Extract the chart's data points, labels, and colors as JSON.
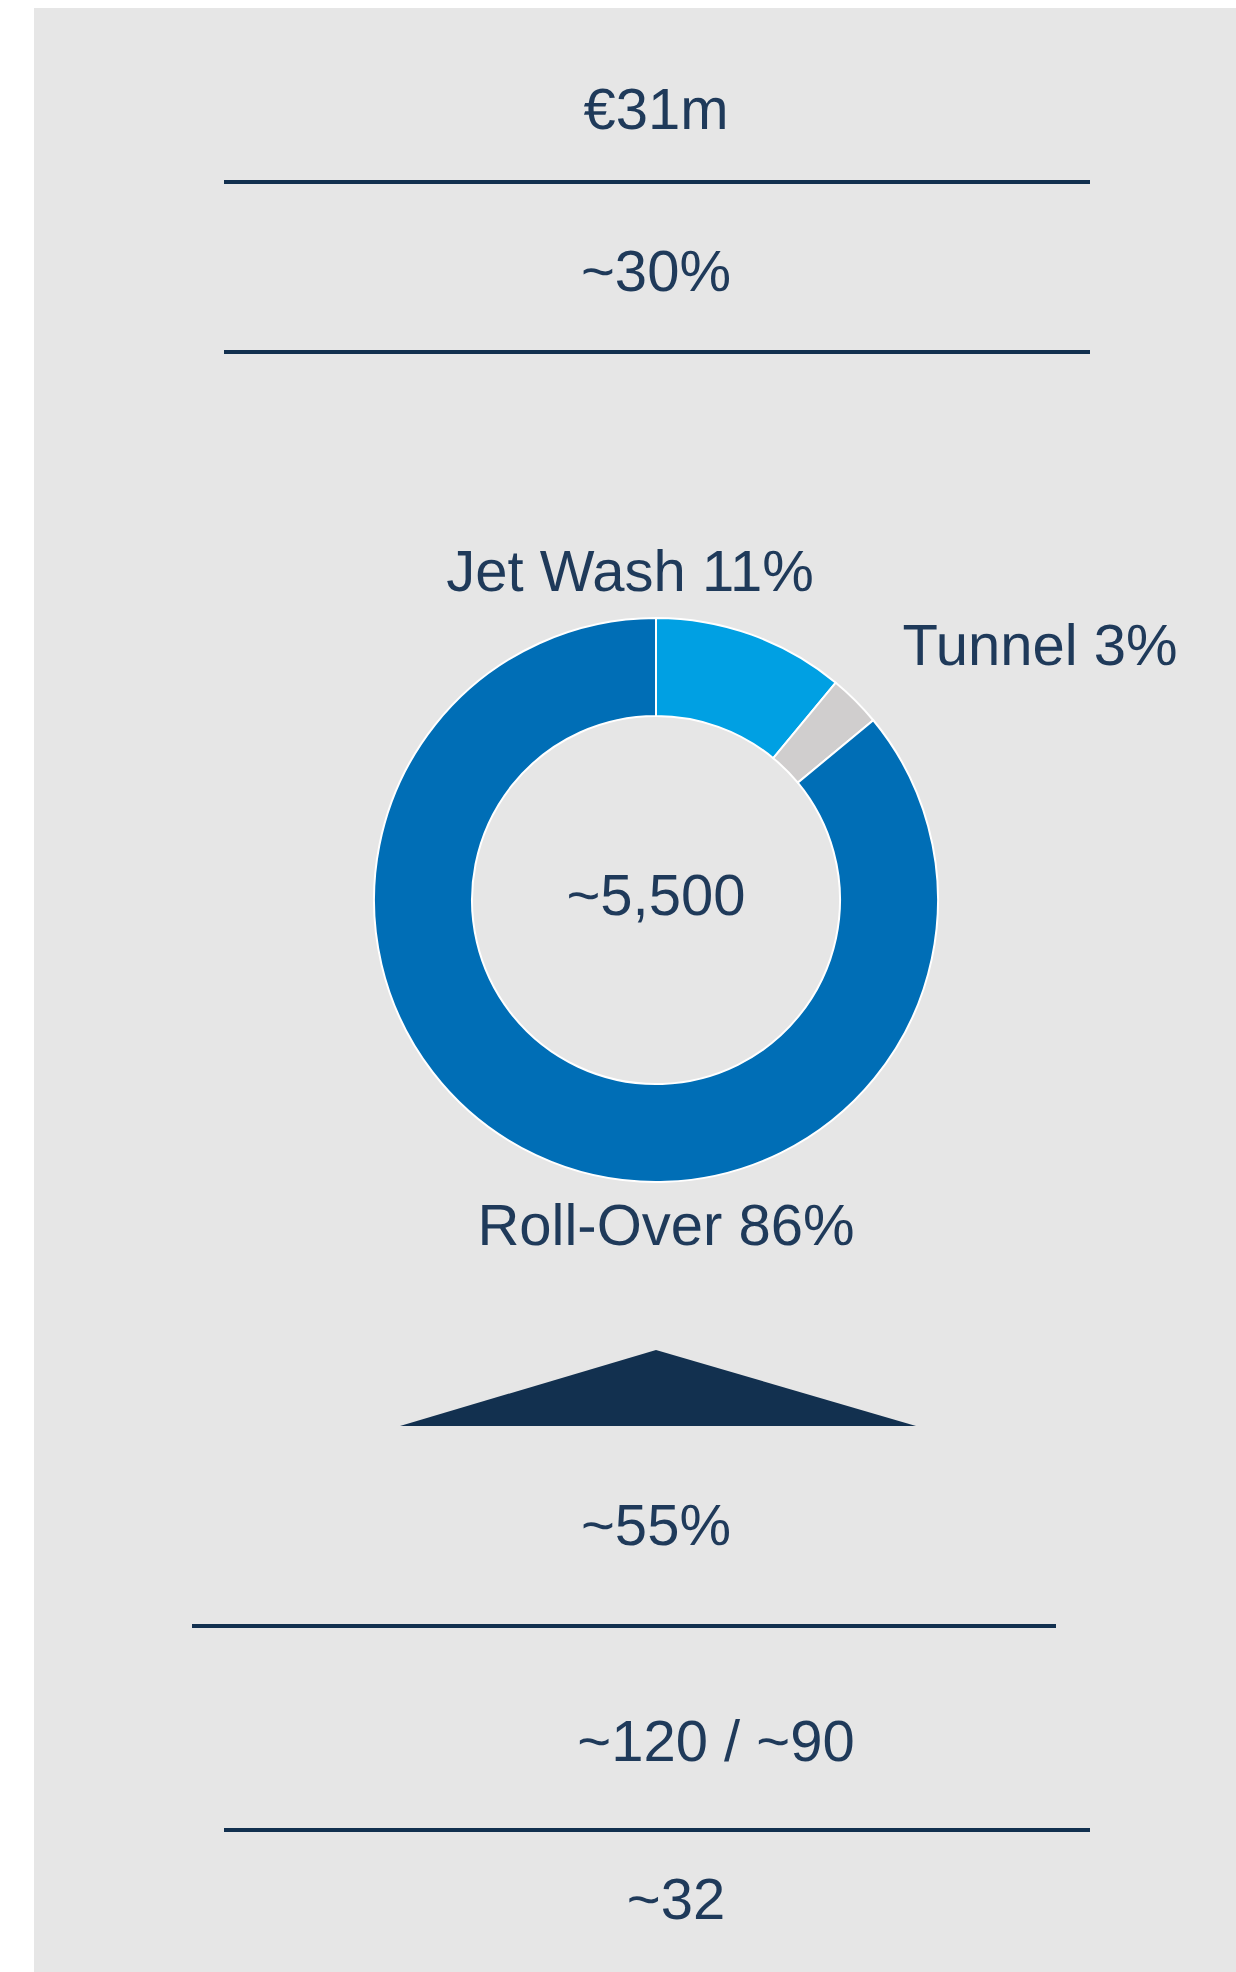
{
  "chart_data": {
    "type": "donut",
    "categories": [
      "Jet Wash 11%",
      "Tunnel 3%",
      "Roll-Over 86%"
    ],
    "values": [
      11,
      3,
      86
    ],
    "colors": [
      "#00a0e3",
      "#d0cece",
      "#006eb6"
    ],
    "annotations": [
      "€31m",
      "~30%",
      "~5,500",
      "~55%",
      "~120 / ~90",
      "~32"
    ]
  }
}
